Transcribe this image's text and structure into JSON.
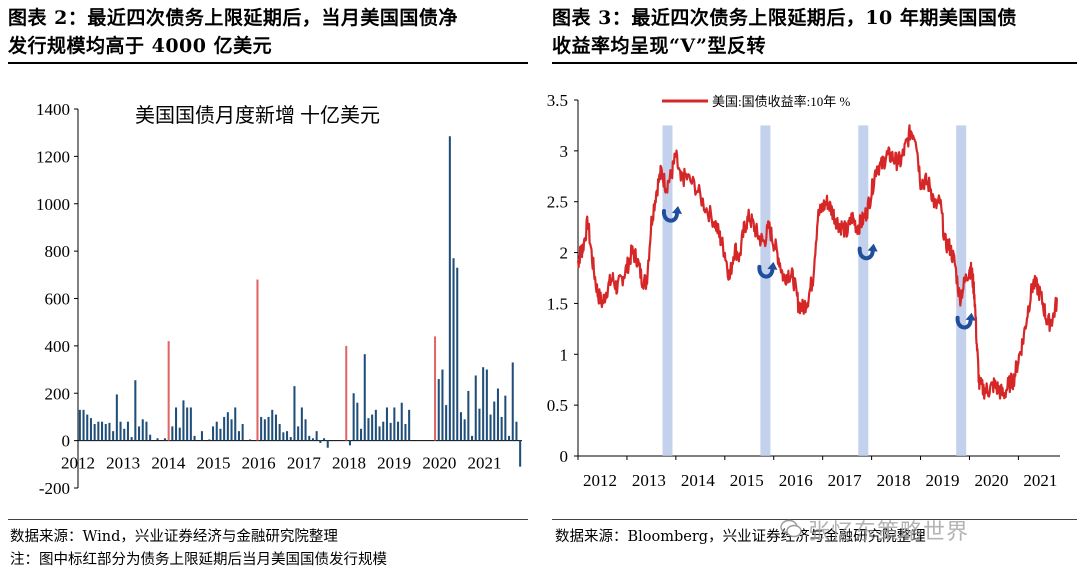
{
  "left_panel": {
    "title_line1": "图表 2：最近四次债务上限延期后，当月美国国债净",
    "title_line2": "发行规模均高于 4000 亿美元",
    "source": "数据来源：Wind，兴业证券经济与金融研究院整理",
    "note": "注：图中标红部分为债务上限延期后当月美国国债发行规模"
  },
  "right_panel": {
    "title_line1": "图表 3：最近四次债务上限延期后，10 年期美国国债",
    "title_line2": "收益率均呈现“V”型反转",
    "source": "数据来源：Bloomberg，兴业证券经济与金融研究院整理"
  },
  "watermark": "张忆东策略世界",
  "chart_data": [
    {
      "type": "bar",
      "title": "美国国债月度新增 十亿美元",
      "xlabel": "",
      "ylabel": "",
      "ylim": [
        -200,
        1400
      ],
      "yticks": [
        "1400",
        "1200",
        "1000",
        "800",
        "600",
        "400",
        "200",
        "0",
        "-200"
      ],
      "xticks": [
        "2012",
        "2013",
        "2014",
        "2015",
        "2016",
        "2017",
        "2018",
        "2019",
        "2020",
        "2021"
      ],
      "series": [
        {
          "name": "monthly_net_issuance",
          "color": "#1f4e79"
        },
        {
          "name": "post_debt_ceiling_month",
          "color": "#e06666"
        }
      ],
      "x_start": 2012.0,
      "x_end": 2021.83,
      "values": [
        130,
        130,
        110,
        95,
        70,
        80,
        80,
        70,
        75,
        40,
        195,
        80,
        50,
        80,
        15,
        255,
        60,
        90,
        80,
        25,
        0,
        10,
        0,
        10,
        420,
        60,
        140,
        55,
        170,
        140,
        140,
        20,
        0,
        40,
        0,
        5,
        60,
        80,
        50,
        100,
        120,
        90,
        140,
        40,
        70,
        0,
        5,
        0,
        680,
        100,
        90,
        100,
        130,
        110,
        70,
        35,
        40,
        15,
        230,
        60,
        140,
        90,
        20,
        10,
        40,
        -10,
        10,
        -30,
        0,
        0,
        0,
        0,
        400,
        -20,
        200,
        160,
        50,
        365,
        95,
        110,
        130,
        60,
        80,
        140,
        75,
        140,
        80,
        160,
        70,
        130,
        0,
        0,
        0,
        0,
        0,
        0,
        440,
        260,
        300,
        150,
        1285,
        770,
        730,
        120,
        90,
        210,
        20,
        275,
        135,
        310,
        300,
        110,
        165,
        220,
        100,
        190,
        20,
        330,
        80,
        -110
      ],
      "red_months": [
        24,
        48,
        72,
        96
      ],
      "annotations": []
    },
    {
      "type": "line",
      "title": "",
      "xlabel": "",
      "ylabel": "",
      "ylim": [
        0,
        3.5
      ],
      "yticks": [
        "3.5",
        "3",
        "2.5",
        "2",
        "1.5",
        "1",
        "0.5",
        "0"
      ],
      "xticks": [
        "2012",
        "2013",
        "2014",
        "2015",
        "2016",
        "2017",
        "2018",
        "2019",
        "2020",
        "2021"
      ],
      "legend": "美国:国债收益率:10年 %",
      "legend_position": "top-left",
      "series": [
        {
          "name": "美国:国债收益率:10年 %",
          "color": "#d62728",
          "x": [
            2012.0,
            2012.05,
            2012.1,
            2012.2,
            2012.3,
            2012.4,
            2012.5,
            2012.6,
            2012.7,
            2012.8,
            2012.9,
            2013.0,
            2013.1,
            2013.2,
            2013.3,
            2013.4,
            2013.5,
            2013.6,
            2013.7,
            2013.8,
            2013.9,
            2014.0,
            2014.1,
            2014.2,
            2014.4,
            2014.6,
            2014.8,
            2014.9,
            2015.0,
            2015.1,
            2015.2,
            2015.3,
            2015.4,
            2015.5,
            2015.6,
            2015.7,
            2015.8,
            2015.9,
            2016.0,
            2016.1,
            2016.2,
            2016.3,
            2016.4,
            2016.5,
            2016.6,
            2016.7,
            2016.8,
            2016.9,
            2017.0,
            2017.1,
            2017.2,
            2017.3,
            2017.4,
            2017.5,
            2017.6,
            2017.7,
            2017.8,
            2017.9,
            2018.0,
            2018.1,
            2018.2,
            2018.3,
            2018.4,
            2018.5,
            2018.6,
            2018.7,
            2018.8,
            2018.9,
            2019.0,
            2019.1,
            2019.2,
            2019.3,
            2019.4,
            2019.5,
            2019.6,
            2019.7,
            2019.8,
            2019.9,
            2020.0,
            2020.05,
            2020.1,
            2020.15,
            2020.2,
            2020.3,
            2020.4,
            2020.5,
            2020.6,
            2020.7,
            2020.8,
            2020.9,
            2021.0,
            2021.1,
            2021.2,
            2021.3,
            2021.4,
            2021.5,
            2021.6,
            2021.7,
            2021.8
          ],
          "values": [
            1.9,
            2.0,
            2.05,
            2.3,
            1.9,
            1.6,
            1.5,
            1.65,
            1.75,
            1.65,
            1.75,
            1.85,
            2.0,
            1.95,
            1.75,
            1.7,
            2.3,
            2.6,
            2.8,
            2.65,
            2.75,
            2.95,
            2.7,
            2.75,
            2.65,
            2.45,
            2.3,
            2.15,
            2.0,
            1.75,
            2.05,
            1.95,
            2.25,
            2.35,
            2.25,
            2.15,
            2.1,
            2.25,
            2.1,
            1.95,
            1.75,
            1.8,
            1.75,
            1.5,
            1.45,
            1.55,
            1.75,
            2.35,
            2.45,
            2.5,
            2.4,
            2.3,
            2.25,
            2.2,
            2.35,
            2.25,
            2.3,
            2.4,
            2.6,
            2.85,
            2.85,
            2.95,
            2.95,
            2.9,
            2.9,
            3.05,
            3.2,
            3.15,
            2.7,
            2.7,
            2.65,
            2.45,
            2.5,
            2.1,
            2.05,
            1.9,
            1.55,
            1.7,
            1.85,
            1.8,
            1.6,
            1.1,
            0.7,
            0.65,
            0.65,
            0.7,
            0.65,
            0.6,
            0.7,
            0.75,
            0.95,
            1.15,
            1.45,
            1.7,
            1.65,
            1.5,
            1.3,
            1.35,
            1.55
          ]
        }
      ],
      "highlight_bands": [
        2013.83,
        2015.83,
        2017.83,
        2019.83
      ],
      "v_markers": [
        {
          "x": 2013.9,
          "y": 2.35
        },
        {
          "x": 2015.85,
          "y": 1.8
        },
        {
          "x": 2017.9,
          "y": 1.98
        },
        {
          "x": 2019.9,
          "y": 1.3
        }
      ]
    }
  ]
}
